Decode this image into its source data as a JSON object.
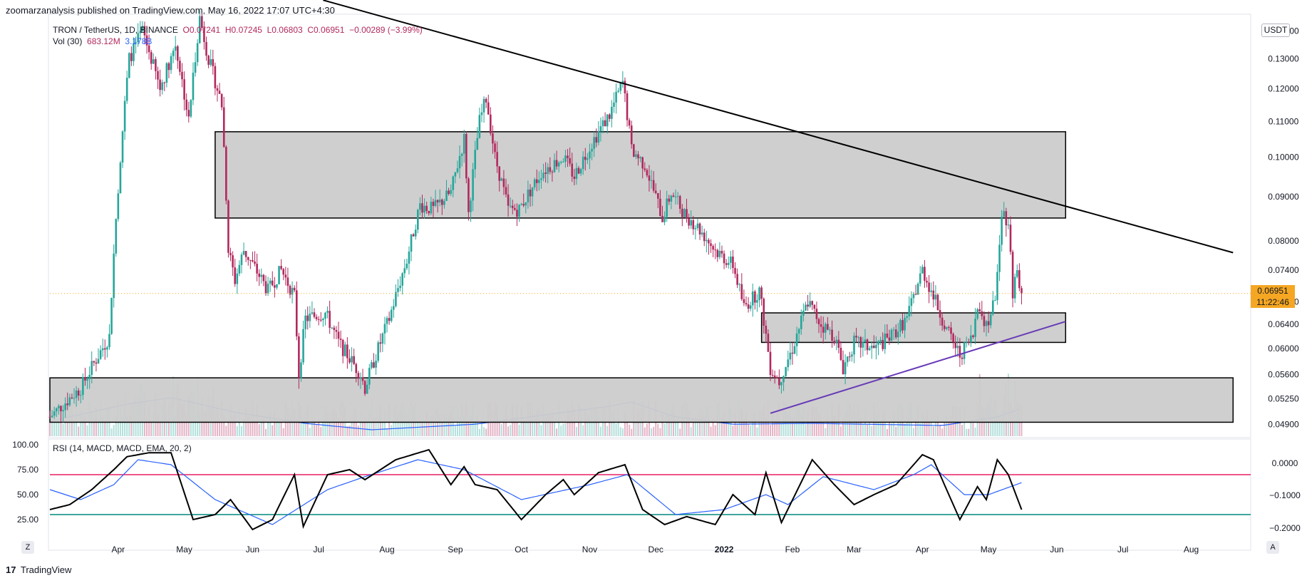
{
  "header": {
    "publisher_line": "zoomarzanalysis published on TradingView.com, May 16, 2022 17:07 UTC+4:30"
  },
  "legend": {
    "symbol": "TRON / TetherUS, 1D, BINANCE",
    "open": "O0.07241",
    "high": "H0.07245",
    "low": "L0.06803",
    "close": "C0.06951",
    "change": "−0.00289 (−3.99%)",
    "vol_label": "Vol (30)",
    "vol_value": "683.12M",
    "vol_ma": "3.178B"
  },
  "rsi_legend": "RSI (14, MACD, MACD, EMA, 20, 2)",
  "currency": "USDT",
  "last_price": {
    "value": "0.06951",
    "countdown": "11:22:46"
  },
  "footer": {
    "logo": "17",
    "brand": "TradingView"
  },
  "corner_buttons": {
    "left": "Z",
    "right": "A"
  },
  "colors": {
    "up": "#26a69a",
    "down": "#b2285d",
    "zone_fill": "#cccccc",
    "trendline_down": "#000000",
    "trendline_up": "#673ab7",
    "rsi_line": "#000000",
    "rsi_ma": "#2962ff",
    "rsi_upper": "#e91e63",
    "rsi_lower": "#00897b",
    "last_price": "#f5a623"
  },
  "chart_data": {
    "type": "candlestick",
    "title": "TRON / TetherUS, 1D, BINANCE",
    "y_scale": "log",
    "price_ticks": [
      "0.14000",
      "0.13000",
      "0.12000",
      "0.11000",
      "0.10000",
      "0.09000",
      "0.08000",
      "0.07400",
      "0.06800",
      "0.06400",
      "0.06000",
      "0.05600",
      "0.05250",
      "0.04900"
    ],
    "x_ticks": [
      "Apr",
      "May",
      "Jun",
      "Jul",
      "Aug",
      "Sep",
      "Oct",
      "Nov",
      "Dec",
      "2022",
      "Feb",
      "Mar",
      "Apr",
      "May",
      "Jun",
      "Jul",
      "Aug"
    ],
    "series": [
      {
        "name": "price",
        "anchors": [
          [
            "2021-03-01",
            0.05
          ],
          [
            "2021-03-15",
            0.054
          ],
          [
            "2021-03-28",
            0.062
          ],
          [
            "2021-04-02",
            0.1
          ],
          [
            "2021-04-06",
            0.13
          ],
          [
            "2021-04-12",
            0.14
          ],
          [
            "2021-04-20",
            0.12
          ],
          [
            "2021-04-27",
            0.135
          ],
          [
            "2021-05-03",
            0.11
          ],
          [
            "2021-05-08",
            0.145
          ],
          [
            "2021-05-12",
            0.13
          ],
          [
            "2021-05-18",
            0.115
          ],
          [
            "2021-05-21",
            0.078
          ],
          [
            "2021-05-24",
            0.072
          ],
          [
            "2021-05-28",
            0.078
          ],
          [
            "2021-06-08",
            0.07
          ],
          [
            "2021-06-14",
            0.074
          ],
          [
            "2021-06-20",
            0.069
          ],
          [
            "2021-06-22",
            0.056
          ],
          [
            "2021-06-25",
            0.065
          ],
          [
            "2021-07-04",
            0.066
          ],
          [
            "2021-07-10",
            0.061
          ],
          [
            "2021-07-20",
            0.056
          ],
          [
            "2021-07-22",
            0.054
          ],
          [
            "2021-08-02",
            0.065
          ],
          [
            "2021-08-10",
            0.076
          ],
          [
            "2021-08-16",
            0.088
          ],
          [
            "2021-08-22",
            0.087
          ],
          [
            "2021-08-30",
            0.091
          ],
          [
            "2021-09-05",
            0.105
          ],
          [
            "2021-09-07",
            0.086
          ],
          [
            "2021-09-12",
            0.11
          ],
          [
            "2021-09-15",
            0.117
          ],
          [
            "2021-09-19",
            0.1
          ],
          [
            "2021-09-25",
            0.087
          ],
          [
            "2021-09-30",
            0.087
          ],
          [
            "2021-10-10",
            0.096
          ],
          [
            "2021-10-20",
            0.1
          ],
          [
            "2021-10-25",
            0.095
          ],
          [
            "2021-11-03",
            0.105
          ],
          [
            "2021-11-10",
            0.112
          ],
          [
            "2021-11-16",
            0.122
          ],
          [
            "2021-11-20",
            0.102
          ],
          [
            "2021-11-26",
            0.098
          ],
          [
            "2021-12-04",
            0.085
          ],
          [
            "2021-12-08",
            0.091
          ],
          [
            "2021-12-14",
            0.086
          ],
          [
            "2021-12-20",
            0.083
          ],
          [
            "2021-12-28",
            0.078
          ],
          [
            "2022-01-05",
            0.075
          ],
          [
            "2022-01-10",
            0.067
          ],
          [
            "2022-01-17",
            0.07
          ],
          [
            "2022-01-22",
            0.057
          ],
          [
            "2022-01-26",
            0.055
          ],
          [
            "2022-02-01",
            0.06
          ],
          [
            "2022-02-08",
            0.068
          ],
          [
            "2022-02-14",
            0.064
          ],
          [
            "2022-02-20",
            0.062
          ],
          [
            "2022-02-24",
            0.057
          ],
          [
            "2022-03-01",
            0.061
          ],
          [
            "2022-03-10",
            0.06
          ],
          [
            "2022-03-18",
            0.062
          ],
          [
            "2022-03-25",
            0.065
          ],
          [
            "2022-04-01",
            0.074
          ],
          [
            "2022-04-05",
            0.07
          ],
          [
            "2022-04-12",
            0.063
          ],
          [
            "2022-04-18",
            0.059
          ],
          [
            "2022-04-24",
            0.062
          ],
          [
            "2022-04-26",
            0.068
          ],
          [
            "2022-04-30",
            0.064
          ],
          [
            "2022-05-04",
            0.068
          ],
          [
            "2022-05-07",
            0.087
          ],
          [
            "2022-05-10",
            0.084
          ],
          [
            "2022-05-12",
            0.07
          ],
          [
            "2022-05-14",
            0.074
          ],
          [
            "2022-05-16",
            0.0695
          ]
        ]
      },
      {
        "name": "RSI",
        "anchors": [
          [
            "2021-03-01",
            35
          ],
          [
            "2021-03-10",
            40
          ],
          [
            "2021-03-20",
            55
          ],
          [
            "2021-03-30",
            75
          ],
          [
            "2021-04-05",
            88
          ],
          [
            "2021-04-15",
            92
          ],
          [
            "2021-04-25",
            92
          ],
          [
            "2021-05-05",
            25
          ],
          [
            "2021-05-15",
            30
          ],
          [
            "2021-05-22",
            45
          ],
          [
            "2021-06-01",
            15
          ],
          [
            "2021-06-10",
            25
          ],
          [
            "2021-06-20",
            70
          ],
          [
            "2021-06-24",
            18
          ],
          [
            "2021-07-05",
            70
          ],
          [
            "2021-07-15",
            75
          ],
          [
            "2021-07-22",
            65
          ],
          [
            "2021-08-05",
            85
          ],
          [
            "2021-08-20",
            95
          ],
          [
            "2021-08-30",
            60
          ],
          [
            "2021-09-05",
            78
          ],
          [
            "2021-09-10",
            60
          ],
          [
            "2021-09-20",
            55
          ],
          [
            "2021-10-01",
            25
          ],
          [
            "2021-10-12",
            50
          ],
          [
            "2021-10-20",
            65
          ],
          [
            "2021-10-25",
            50
          ],
          [
            "2021-11-05",
            72
          ],
          [
            "2021-11-17",
            80
          ],
          [
            "2021-11-25",
            35
          ],
          [
            "2021-12-05",
            20
          ],
          [
            "2021-12-15",
            28
          ],
          [
            "2021-12-28",
            20
          ],
          [
            "2022-01-05",
            50
          ],
          [
            "2022-01-15",
            30
          ],
          [
            "2022-01-20",
            72
          ],
          [
            "2022-01-27",
            22
          ],
          [
            "2022-02-10",
            85
          ],
          [
            "2022-02-20",
            60
          ],
          [
            "2022-03-01",
            40
          ],
          [
            "2022-03-10",
            50
          ],
          [
            "2022-03-20",
            60
          ],
          [
            "2022-04-01",
            90
          ],
          [
            "2022-04-06",
            85
          ],
          [
            "2022-04-18",
            25
          ],
          [
            "2022-04-26",
            58
          ],
          [
            "2022-04-30",
            45
          ],
          [
            "2022-05-05",
            85
          ],
          [
            "2022-05-10",
            70
          ],
          [
            "2022-05-16",
            35
          ]
        ]
      },
      {
        "name": "RSI MA",
        "anchors": [
          [
            "2021-03-01",
            55
          ],
          [
            "2021-03-15",
            45
          ],
          [
            "2021-03-30",
            60
          ],
          [
            "2021-04-10",
            85
          ],
          [
            "2021-04-25",
            80
          ],
          [
            "2021-05-15",
            45
          ],
          [
            "2021-06-10",
            20
          ],
          [
            "2021-07-05",
            55
          ],
          [
            "2021-07-22",
            68
          ],
          [
            "2021-08-15",
            85
          ],
          [
            "2021-09-05",
            75
          ],
          [
            "2021-10-01",
            45
          ],
          [
            "2021-11-01",
            60
          ],
          [
            "2021-11-18",
            70
          ],
          [
            "2021-12-10",
            30
          ],
          [
            "2022-01-01",
            35
          ],
          [
            "2022-01-20",
            50
          ],
          [
            "2022-01-30",
            40
          ],
          [
            "2022-02-15",
            68
          ],
          [
            "2022-03-10",
            55
          ],
          [
            "2022-03-28",
            70
          ],
          [
            "2022-04-05",
            80
          ],
          [
            "2022-04-20",
            50
          ],
          [
            "2022-05-01",
            50
          ],
          [
            "2022-05-16",
            62
          ]
        ]
      },
      {
        "name": "Volume MA",
        "anchors": [
          [
            "2021-03-01",
            0.35
          ],
          [
            "2021-04-05",
            0.75
          ],
          [
            "2021-04-25",
            0.9
          ],
          [
            "2021-05-25",
            0.55
          ],
          [
            "2021-06-25",
            0.3
          ],
          [
            "2021-07-25",
            0.15
          ],
          [
            "2021-09-10",
            0.28
          ],
          [
            "2021-11-10",
            0.7
          ],
          [
            "2021-11-20",
            0.8
          ],
          [
            "2021-12-10",
            0.45
          ],
          [
            "2022-01-05",
            0.28
          ],
          [
            "2022-02-10",
            0.3
          ],
          [
            "2022-04-10",
            0.25
          ],
          [
            "2022-05-05",
            0.45
          ],
          [
            "2022-05-16",
            0.65
          ]
        ]
      }
    ],
    "rsi": {
      "ylim": [
        0,
        100
      ],
      "ticks": [
        "100.00",
        "75.00",
        "50.00",
        "25.00"
      ],
      "upper_band": 70,
      "lower_band": 30
    },
    "macd_ticks": [
      "0.0000",
      "−0.1000",
      "−0.2000"
    ],
    "zones": [
      {
        "from": "2021-05-15",
        "to": "2022-06-05",
        "low": 0.085,
        "high": 0.107
      },
      {
        "from": "2022-01-18",
        "to": "2022-06-05",
        "low": 0.061,
        "high": 0.066
      },
      {
        "from": "2021-03-01",
        "to": "2022-08-20",
        "low": 0.0493,
        "high": 0.0555
      }
    ],
    "trendlines": [
      {
        "name": "descending",
        "from": [
          "2021-07-03",
          0.152
        ],
        "to": [
          "2022-08-20",
          0.0775
        ]
      },
      {
        "name": "ascending",
        "from": [
          "2022-01-22",
          0.0505
        ],
        "to": [
          "2022-06-05",
          0.0645
        ]
      }
    ],
    "last_price_line": 0.06951
  }
}
